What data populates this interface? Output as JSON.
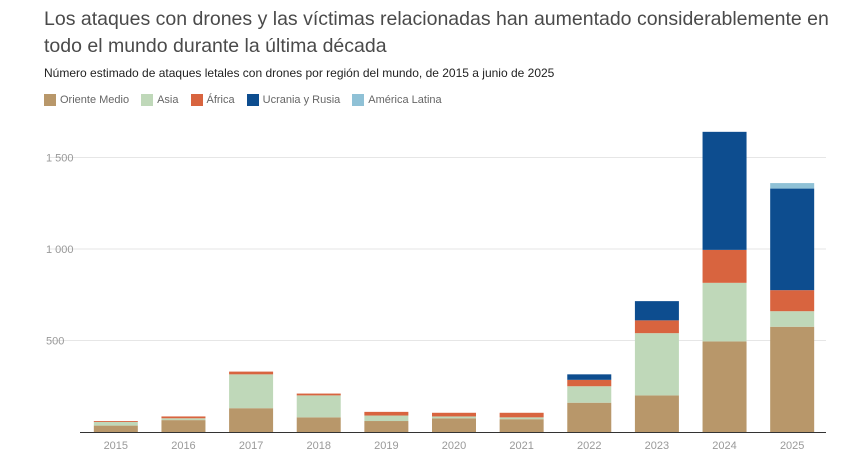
{
  "title": "Los ataques con drones y las víctimas relacionadas han aumentado considerablemente en todo el mundo durante la última década",
  "subtitle": "Número estimado de ataques letales con drones por región del mundo, de 2015 a junio de 2025",
  "legend": [
    {
      "name": "Oriente Medio",
      "color": "#b8976a"
    },
    {
      "name": "Asia",
      "color": "#bfd8b9"
    },
    {
      "name": "África",
      "color": "#d8643f"
    },
    {
      "name": "Ucrania y Rusia",
      "color": "#0d4d8f"
    },
    {
      "name": "América Latina",
      "color": "#8fc1d6"
    }
  ],
  "chart_data": {
    "type": "bar",
    "stacked": true,
    "title": "Los ataques con drones y las víctimas relacionadas han aumentado considerablemente en todo el mundo durante la última década",
    "subtitle": "Número estimado de ataques letales con drones por región del mundo, de 2015 a junio de 2025",
    "xlabel": "",
    "ylabel": "",
    "ylim": [
      0,
      1650
    ],
    "yticks": [
      500,
      1000,
      1500
    ],
    "ytick_labels": [
      "500",
      "1 000",
      "1 500"
    ],
    "grid": true,
    "legend_position": "top-left",
    "categories": [
      "2015",
      "2016",
      "2017",
      "2018",
      "2019",
      "2020",
      "2021",
      "2022",
      "2023",
      "2024",
      "2025"
    ],
    "series": [
      {
        "name": "Oriente Medio",
        "color": "#b8976a",
        "values": [
          35,
          65,
          130,
          80,
          60,
          75,
          70,
          160,
          200,
          495,
          575
        ]
      },
      {
        "name": "Asia",
        "color": "#bfd8b9",
        "values": [
          20,
          10,
          185,
          120,
          30,
          10,
          10,
          90,
          340,
          320,
          85
        ]
      },
      {
        "name": "África",
        "color": "#d8643f",
        "values": [
          5,
          10,
          15,
          10,
          20,
          20,
          25,
          35,
          70,
          180,
          115
        ]
      },
      {
        "name": "Ucrania y Rusia",
        "color": "#0d4d8f",
        "values": [
          0,
          0,
          0,
          0,
          0,
          0,
          0,
          30,
          105,
          645,
          555
        ]
      },
      {
        "name": "América Latina",
        "color": "#8fc1d6",
        "values": [
          0,
          0,
          0,
          0,
          0,
          0,
          0,
          0,
          0,
          0,
          30
        ]
      }
    ]
  }
}
